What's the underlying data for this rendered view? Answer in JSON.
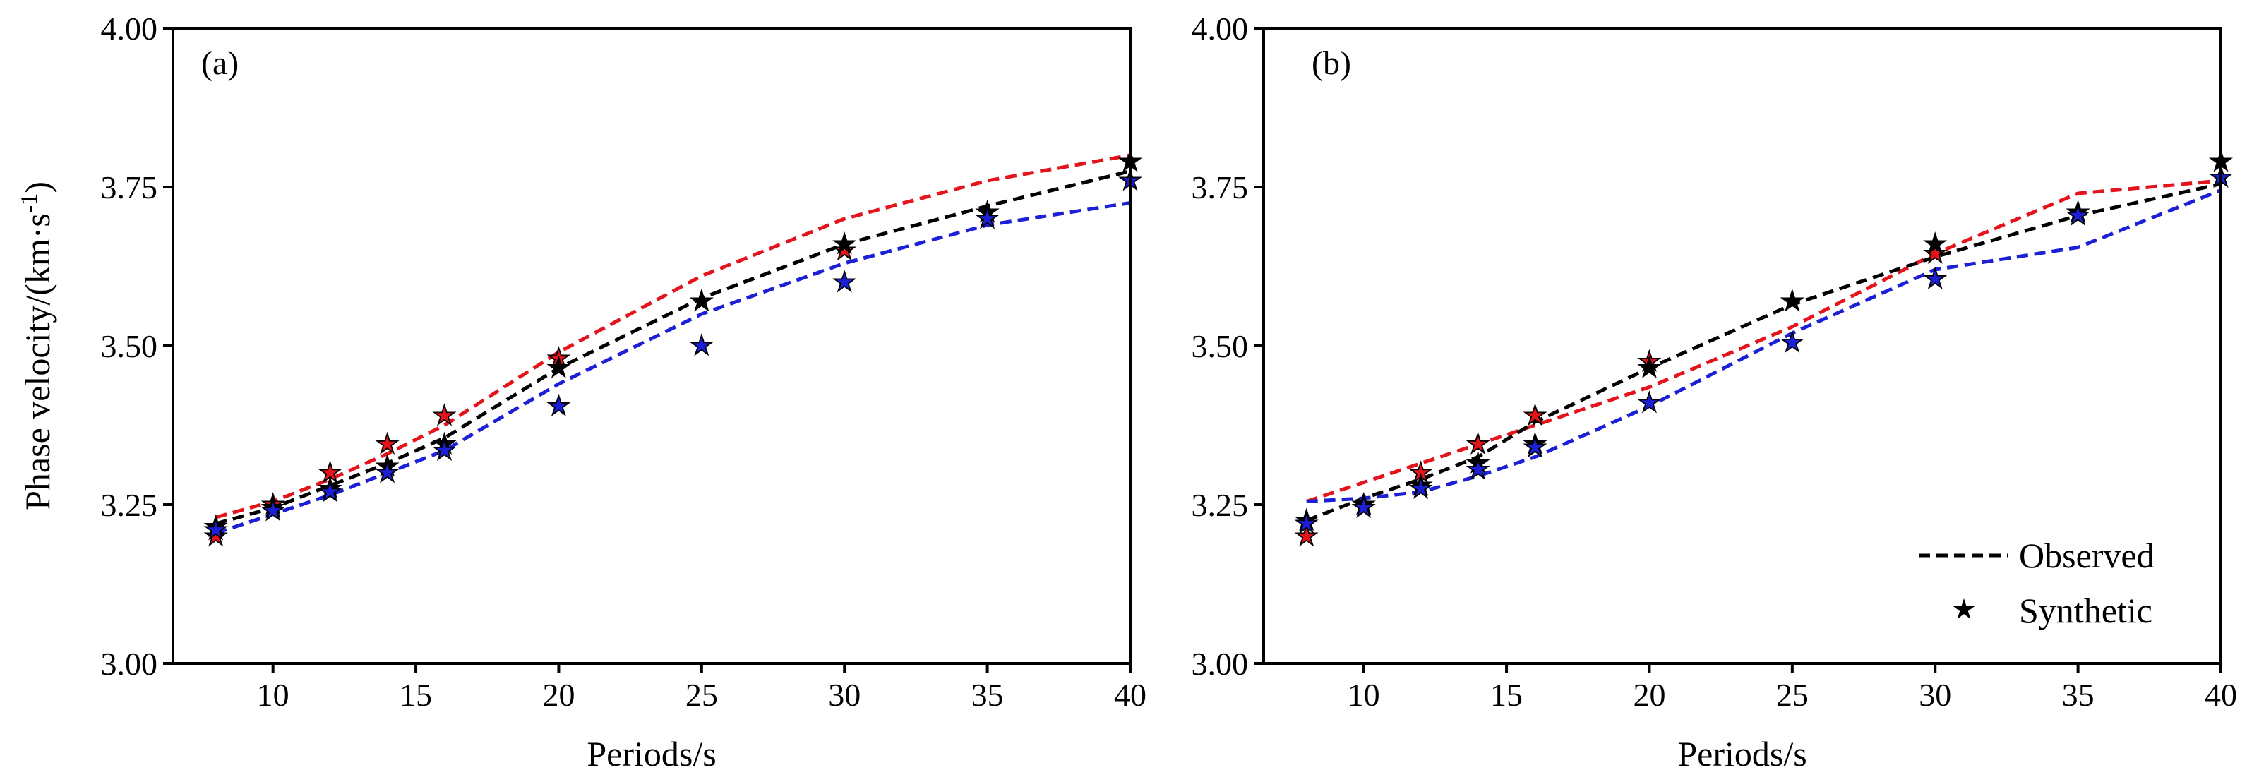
{
  "figure": {
    "ylabel_main": "Phase velocity/(km·s",
    "ylabel_sup": "-1",
    "ylabel_close": ")",
    "legend": {
      "observed": "Observed",
      "synthetic": "Synthetic"
    }
  },
  "colors": {
    "red": "#e3141c",
    "black": "#000000",
    "blue": "#1b1fd6"
  },
  "chart_data": [
    {
      "type": "line",
      "panel_label": "(a)",
      "xlabel": "Periods/s",
      "ylabel": "Phase velocity/(km·s-1)",
      "xlim": [
        6.5,
        40
      ],
      "ylim": [
        3.0,
        4.0
      ],
      "xticks": [
        10,
        15,
        20,
        25,
        30,
        35,
        40
      ],
      "yticks": [
        3.0,
        3.25,
        3.5,
        3.75,
        4.0
      ],
      "ytick_labels": [
        "3.00",
        "3.25",
        "3.50",
        "3.75",
        "4.00"
      ],
      "x": [
        8,
        10,
        12,
        14,
        16,
        20,
        25,
        30,
        35,
        40
      ],
      "series": [
        {
          "name": "red",
          "color": "#e3141c",
          "observed": [
            3.23,
            3.255,
            3.29,
            3.33,
            3.375,
            3.49,
            3.61,
            3.7,
            3.76,
            3.8
          ],
          "synthetic": [
            3.2,
            3.25,
            3.3,
            3.345,
            3.39,
            3.48,
            3.57,
            3.65,
            3.71,
            3.79
          ]
        },
        {
          "name": "black",
          "color": "#000000",
          "observed": [
            3.22,
            3.245,
            3.28,
            3.315,
            3.355,
            3.465,
            3.575,
            3.66,
            3.72,
            3.775
          ],
          "synthetic": [
            3.215,
            3.245,
            3.275,
            3.31,
            3.345,
            3.465,
            3.57,
            3.66,
            3.71,
            3.79
          ]
        },
        {
          "name": "blue",
          "color": "#1b1fd6",
          "observed": [
            3.205,
            3.235,
            3.265,
            3.3,
            3.335,
            3.44,
            3.55,
            3.63,
            3.69,
            3.725
          ],
          "synthetic": [
            3.21,
            3.24,
            3.27,
            3.3,
            3.335,
            3.405,
            3.5,
            3.6,
            3.7,
            3.76
          ]
        }
      ]
    },
    {
      "type": "line",
      "panel_label": "(b)",
      "xlabel": "Periods/s",
      "ylabel": "Phase velocity/(km·s-1)",
      "xlim": [
        6.5,
        40
      ],
      "ylim": [
        3.0,
        4.0
      ],
      "xticks": [
        10,
        15,
        20,
        25,
        30,
        35,
        40
      ],
      "yticks": [
        3.0,
        3.25,
        3.5,
        3.75,
        4.0
      ],
      "ytick_labels": [
        "3.00",
        "3.25",
        "3.50",
        "3.75",
        "4.00"
      ],
      "x": [
        8,
        10,
        12,
        14,
        16,
        20,
        25,
        30,
        35,
        40
      ],
      "series": [
        {
          "name": "red",
          "color": "#e3141c",
          "observed": [
            3.255,
            3.285,
            3.315,
            3.345,
            3.375,
            3.435,
            3.53,
            3.645,
            3.74,
            3.76
          ],
          "synthetic": [
            3.2,
            3.25,
            3.3,
            3.345,
            3.39,
            3.475,
            3.57,
            3.645,
            3.71,
            3.765
          ]
        },
        {
          "name": "black",
          "color": "#000000",
          "observed": [
            3.225,
            3.26,
            3.29,
            3.325,
            3.38,
            3.465,
            3.565,
            3.64,
            3.705,
            3.755
          ],
          "synthetic": [
            3.225,
            3.25,
            3.28,
            3.315,
            3.345,
            3.465,
            3.57,
            3.66,
            3.71,
            3.79
          ]
        },
        {
          "name": "blue",
          "color": "#1b1fd6",
          "observed": [
            3.255,
            3.26,
            3.27,
            3.295,
            3.325,
            3.405,
            3.52,
            3.62,
            3.655,
            3.745
          ],
          "synthetic": [
            3.22,
            3.245,
            3.275,
            3.305,
            3.34,
            3.41,
            3.505,
            3.605,
            3.705,
            3.765
          ]
        }
      ]
    }
  ]
}
